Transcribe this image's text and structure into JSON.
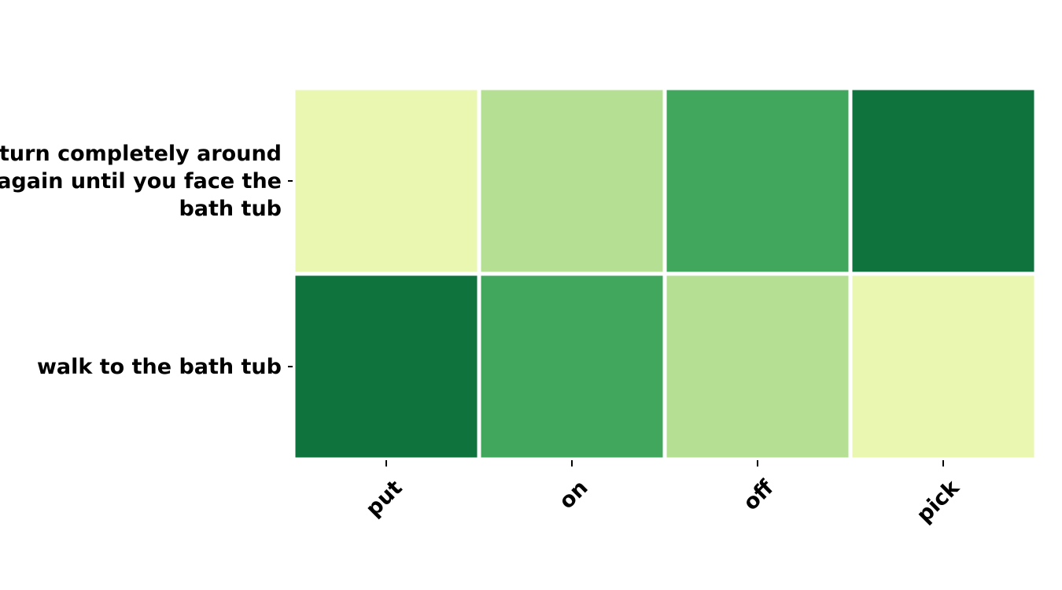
{
  "chart_data": {
    "type": "heatmap",
    "title": "",
    "xlabel": "",
    "ylabel": "",
    "x_categories": [
      "put",
      "on",
      "off",
      "pick"
    ],
    "y_categories": [
      [
        "turn completely around",
        "again until you face the",
        "bath tub"
      ],
      [
        "walk to the bath tub"
      ]
    ],
    "values": [
      [
        0.05,
        0.3,
        0.6,
        0.95
      ],
      [
        0.95,
        0.6,
        0.3,
        0.05
      ]
    ],
    "colormap": "YlGn",
    "colors": {
      "0.05": "#eaf7b1",
      "0.3": "#b5e093",
      "0.6": "#40a75d",
      "0.95": "#0f733d"
    },
    "colorbar": false,
    "grid": false
  }
}
